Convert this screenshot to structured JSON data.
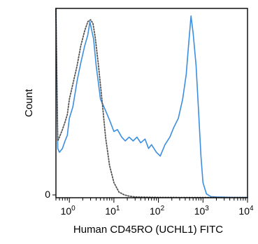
{
  "chart_data": {
    "type": "line",
    "title": "",
    "xlabel": "Human CD45RO (UCHL1) FITC",
    "ylabel": "Count",
    "x_scale": "log",
    "xlim": [
      0.5,
      10000
    ],
    "ylim": [
      0,
      100
    ],
    "grid": false,
    "legend": "none",
    "x_ticks": [
      {
        "base": "10",
        "exp": "0",
        "value": 1
      },
      {
        "base": "10",
        "exp": "1",
        "value": 10
      },
      {
        "base": "10",
        "exp": "2",
        "value": 100
      },
      {
        "base": "10",
        "exp": "3",
        "value": 1000
      },
      {
        "base": "10",
        "exp": "4",
        "value": 10000
      }
    ],
    "y_ticks": [
      {
        "label": "0",
        "value": 0
      }
    ],
    "series": [
      {
        "style": "solid",
        "color": "#3b8ee0",
        "x": [
          0.5,
          0.55,
          0.6,
          0.7,
          0.8,
          0.9,
          1.0,
          1.2,
          1.5,
          1.8,
          2.2,
          2.6,
          2.9,
          3.2,
          3.5,
          4.0,
          5.0,
          6.0,
          8.0,
          10,
          12,
          15,
          18,
          22,
          27,
          33,
          40,
          50,
          60,
          70,
          90,
          110,
          140,
          180,
          220,
          280,
          350,
          420,
          480,
          540,
          600,
          700,
          800,
          900,
          1000,
          1200,
          1500,
          2000,
          3000,
          5000,
          10000
        ],
        "values": [
          100,
          26,
          24,
          26,
          30,
          33,
          42,
          48,
          62,
          71,
          80,
          86,
          93,
          88,
          84,
          70,
          52,
          48,
          41,
          35,
          36,
          32,
          30,
          32,
          30,
          32,
          29,
          31,
          26,
          28,
          24,
          22,
          28,
          32,
          37,
          42,
          52,
          65,
          82,
          96,
          87,
          70,
          45,
          22,
          8,
          2,
          0.6,
          0.4,
          0.3,
          0.2,
          0.2
        ]
      },
      {
        "style": "dotted",
        "color": "#555555",
        "x": [
          0.5,
          0.55,
          0.6,
          0.7,
          0.8,
          0.9,
          1.0,
          1.2,
          1.5,
          1.8,
          2.2,
          2.6,
          3.0,
          3.4,
          3.8,
          4.5,
          5.5,
          6.5,
          8.0,
          10,
          13,
          17,
          22,
          30,
          50,
          100,
          1000,
          10000
        ],
        "values": [
          100,
          30,
          32,
          36,
          40,
          44,
          52,
          60,
          70,
          80,
          88,
          93,
          94,
          92,
          85,
          70,
          50,
          32,
          17,
          8,
          3,
          1.5,
          0.8,
          0.4,
          0.3,
          0.2,
          0.1,
          0.1
        ]
      }
    ]
  }
}
